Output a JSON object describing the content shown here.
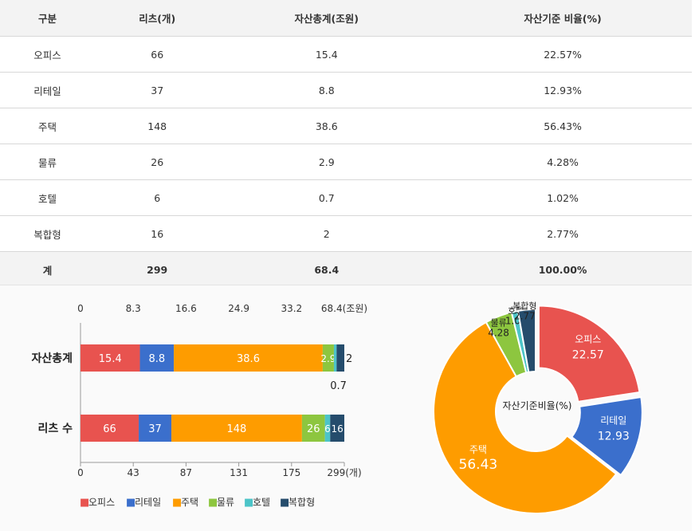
{
  "table": {
    "headers": [
      "구분",
      "리츠(개)",
      "자산총계(조원)",
      "자산기준 비율(%)"
    ],
    "rows": [
      [
        "오피스",
        "66",
        "15.4",
        "22.57%"
      ],
      [
        "리테일",
        "37",
        "8.8",
        "12.93%"
      ],
      [
        "주택",
        "148",
        "38.6",
        "56.43%"
      ],
      [
        "물류",
        "26",
        "2.9",
        "4.28%"
      ],
      [
        "호텔",
        "6",
        "0.7",
        "1.02%"
      ],
      [
        "복합형",
        "16",
        "2",
        "2.77%"
      ]
    ],
    "total": [
      "계",
      "299",
      "68.4",
      "100.00%"
    ]
  },
  "chart_data": [
    {
      "type": "bar",
      "orientation": "horizontal",
      "stacked": true,
      "categories": [
        "자산총계",
        "리츠 수"
      ],
      "series": [
        {
          "name": "오피스",
          "color": "#e8534f",
          "values": [
            15.4,
            66
          ],
          "labels": [
            "15.4",
            "66"
          ]
        },
        {
          "name": "리테일",
          "color": "#3b6fcc",
          "values": [
            8.8,
            37
          ],
          "labels": [
            "8.8",
            "37"
          ]
        },
        {
          "name": "주택",
          "color": "#fe9c00",
          "values": [
            38.6,
            148
          ],
          "labels": [
            "38.6",
            "148"
          ]
        },
        {
          "name": "물류",
          "color": "#8dc63f",
          "values": [
            2.9,
            26
          ],
          "labels": [
            "2.9",
            "26"
          ]
        },
        {
          "name": "호텔",
          "color": "#4cc4c8",
          "values": [
            0.7,
            6
          ],
          "labels": [
            "0.7",
            "6"
          ]
        },
        {
          "name": "복합형",
          "color": "#254c6c",
          "values": [
            2,
            16
          ],
          "labels": [
            "2",
            "16"
          ]
        }
      ],
      "top_axis": {
        "ticks": [
          "0",
          "8.3",
          "16.6",
          "24.9",
          "33.2",
          "68.4(조원)"
        ],
        "max": 68.4
      },
      "bottom_axis": {
        "ticks": [
          "0",
          "43",
          "87",
          "131",
          "175",
          "299(개)"
        ],
        "max": 299
      },
      "legend": "bottom-left",
      "legend_marker": "■"
    },
    {
      "type": "pie",
      "donut": true,
      "center_label": "자산기준비율(%)",
      "slices": [
        {
          "name": "오피스",
          "value": 22.57,
          "label": "22.57",
          "color": "#e8534f"
        },
        {
          "name": "리테일",
          "value": 12.93,
          "label": "12.93",
          "color": "#3b6fcc"
        },
        {
          "name": "주택",
          "value": 56.43,
          "label": "56.43",
          "color": "#fe9c00"
        },
        {
          "name": "물류",
          "value": 4.28,
          "label": "4.28",
          "color": "#8dc63f"
        },
        {
          "name": "호텔",
          "value": 1.02,
          "label": "1.02",
          "color": "#4cc4c8"
        },
        {
          "name": "복합형",
          "value": 2.77,
          "label": "2.77",
          "color": "#254c6c"
        }
      ]
    }
  ]
}
